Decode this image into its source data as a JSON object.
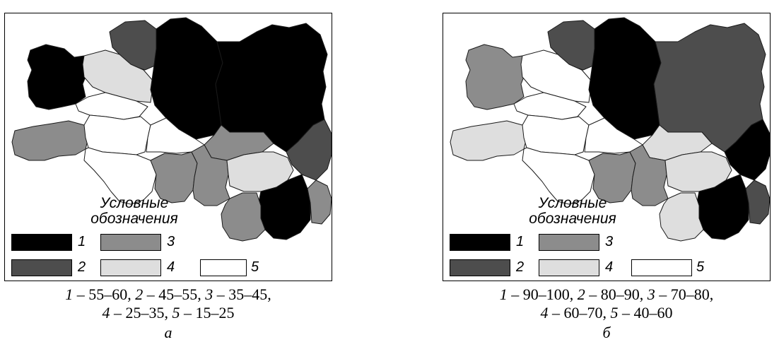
{
  "colors": {
    "class1": "#000000",
    "class2": "#4d4d4d",
    "class3": "#8c8c8c",
    "class4": "#dedede",
    "class5": "#ffffff"
  },
  "panels": [
    {
      "id": "a",
      "legend_title_line1": "Условные",
      "legend_title_line2": "обозначения",
      "legend": [
        {
          "num": "1",
          "class": 1
        },
        {
          "num": "2",
          "class": 2
        },
        {
          "num": "3",
          "class": 3
        },
        {
          "num": "4",
          "class": 4
        },
        {
          "num": "5",
          "class": 5
        }
      ],
      "caption_line1": [
        {
          "n": "1",
          "range": " – 55–60, "
        },
        {
          "n": "2",
          "range": " – 45–55, "
        },
        {
          "n": "3",
          "range": " – 35–45,"
        }
      ],
      "caption_line2": [
        {
          "n": "4",
          "range": " – 25–35, "
        },
        {
          "n": "5",
          "range": " – 15–25"
        }
      ],
      "letter": "а",
      "regions": [
        {
          "id": "west-top",
          "class": 1
        },
        {
          "id": "north-mid-left",
          "class": 2
        },
        {
          "id": "north-center",
          "class": 4
        },
        {
          "id": "north-big",
          "class": 1
        },
        {
          "id": "north-east-big",
          "class": 1
        },
        {
          "id": "center-small",
          "class": 5
        },
        {
          "id": "west-mid",
          "class": 3
        },
        {
          "id": "center",
          "class": 5
        },
        {
          "id": "center-right-small",
          "class": 5
        },
        {
          "id": "center-east",
          "class": 3
        },
        {
          "id": "east-edge",
          "class": 2
        },
        {
          "id": "south-west",
          "class": 5
        },
        {
          "id": "south-center",
          "class": 3
        },
        {
          "id": "south-center-right",
          "class": 3
        },
        {
          "id": "south-east-mid",
          "class": 4
        },
        {
          "id": "south-east-bottom",
          "class": 1
        },
        {
          "id": "south-bottom-center",
          "class": 3
        },
        {
          "id": "east-bottom",
          "class": 3
        }
      ]
    },
    {
      "id": "b",
      "legend_title_line1": "Условные",
      "legend_title_line2": "обозначения",
      "legend": [
        {
          "num": "1",
          "class": 1
        },
        {
          "num": "2",
          "class": 2
        },
        {
          "num": "3",
          "class": 3
        },
        {
          "num": "4",
          "class": 4
        },
        {
          "num": "5",
          "class": 5
        }
      ],
      "caption_line1": [
        {
          "n": "1",
          "range": " – 90–100, "
        },
        {
          "n": "2",
          "range": " – 80–90, "
        },
        {
          "n": "3",
          "range": " – 70–80,"
        }
      ],
      "caption_line2": [
        {
          "n": "4",
          "range": " – 60–70, "
        },
        {
          "n": "5",
          "range": " – 40–60"
        }
      ],
      "letter": "б",
      "regions": [
        {
          "id": "west-top",
          "class": 3
        },
        {
          "id": "north-mid-left",
          "class": 2
        },
        {
          "id": "north-center",
          "class": 5
        },
        {
          "id": "north-big",
          "class": 1
        },
        {
          "id": "north-east-big",
          "class": 2
        },
        {
          "id": "center-small",
          "class": 5
        },
        {
          "id": "west-mid",
          "class": 4
        },
        {
          "id": "center",
          "class": 5
        },
        {
          "id": "center-right-small",
          "class": 5
        },
        {
          "id": "center-east",
          "class": 4
        },
        {
          "id": "east-edge",
          "class": 1
        },
        {
          "id": "south-west",
          "class": 5
        },
        {
          "id": "south-center",
          "class": 3
        },
        {
          "id": "south-center-right",
          "class": 3
        },
        {
          "id": "south-east-mid",
          "class": 4
        },
        {
          "id": "south-east-bottom",
          "class": 1
        },
        {
          "id": "south-bottom-center",
          "class": 4
        },
        {
          "id": "east-bottom",
          "class": 2
        }
      ]
    }
  ]
}
